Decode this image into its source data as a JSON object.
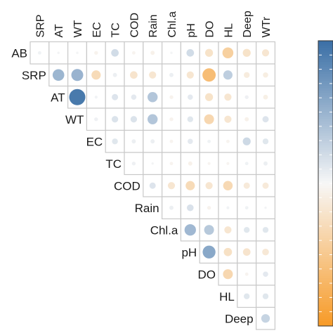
{
  "chart_data": {
    "type": "heatmap",
    "variables": [
      "AB",
      "SRP",
      "AT",
      "WT",
      "EC",
      "TC",
      "COD",
      "Rain",
      "Chl.a",
      "pH",
      "DO",
      "HL",
      "Deep",
      "WTr"
    ],
    "colors": {
      "positive": "#3a6fa6",
      "neutral": "#f7f7f7",
      "negative": "#f79a26"
    },
    "value_range": [
      -1,
      1
    ],
    "legend": {
      "placement": "right",
      "ticks": 20
    },
    "matrix": [
      [
        null,
        0.04,
        0.02,
        0.02,
        -0.05,
        0.2,
        -0.04,
        -0.06,
        0.02,
        0.2,
        -0.22,
        -0.42,
        -0.22,
        -0.18
      ],
      [
        null,
        null,
        0.48,
        0.5,
        -0.3,
        0.06,
        -0.2,
        -0.18,
        0.06,
        -0.18,
        -0.62,
        0.3,
        -0.12,
        -0.1
      ],
      [
        null,
        null,
        null,
        0.92,
        0.03,
        0.14,
        0.1,
        0.36,
        -0.05,
        0.1,
        -0.22,
        -0.18,
        0.05,
        -0.08
      ],
      [
        null,
        null,
        null,
        null,
        0.05,
        0.15,
        0.15,
        0.36,
        -0.05,
        0.12,
        -0.34,
        -0.18,
        -0.06,
        0.14
      ],
      [
        null,
        null,
        null,
        null,
        null,
        0.12,
        0.06,
        0.06,
        -0.04,
        0.1,
        0.04,
        -0.04,
        0.22,
        0.12
      ],
      [
        null,
        null,
        null,
        null,
        null,
        null,
        0.05,
        0.02,
        -0.04,
        -0.06,
        -0.03,
        -0.03,
        0.04,
        0.06
      ],
      [
        null,
        null,
        null,
        null,
        null,
        null,
        null,
        0.14,
        -0.18,
        -0.3,
        -0.18,
        -0.32,
        -0.14,
        -0.14
      ],
      [
        null,
        null,
        null,
        null,
        null,
        null,
        null,
        null,
        0.06,
        0.16,
        -0.05,
        0.03,
        0.04,
        0.02
      ],
      [
        null,
        null,
        null,
        null,
        null,
        null,
        null,
        null,
        null,
        0.46,
        0.34,
        -0.18,
        0.12,
        0.12
      ],
      [
        null,
        null,
        null,
        null,
        null,
        null,
        null,
        null,
        null,
        null,
        0.58,
        -0.24,
        -0.2,
        -0.16
      ],
      [
        null,
        null,
        null,
        null,
        null,
        null,
        null,
        null,
        null,
        null,
        null,
        -0.34,
        -0.04,
        0.1
      ],
      [
        null,
        null,
        null,
        null,
        null,
        null,
        null,
        null,
        null,
        null,
        null,
        null,
        0.12,
        0.12
      ],
      [
        null,
        null,
        null,
        null,
        null,
        null,
        null,
        null,
        null,
        null,
        null,
        null,
        null,
        0.26
      ]
    ]
  }
}
